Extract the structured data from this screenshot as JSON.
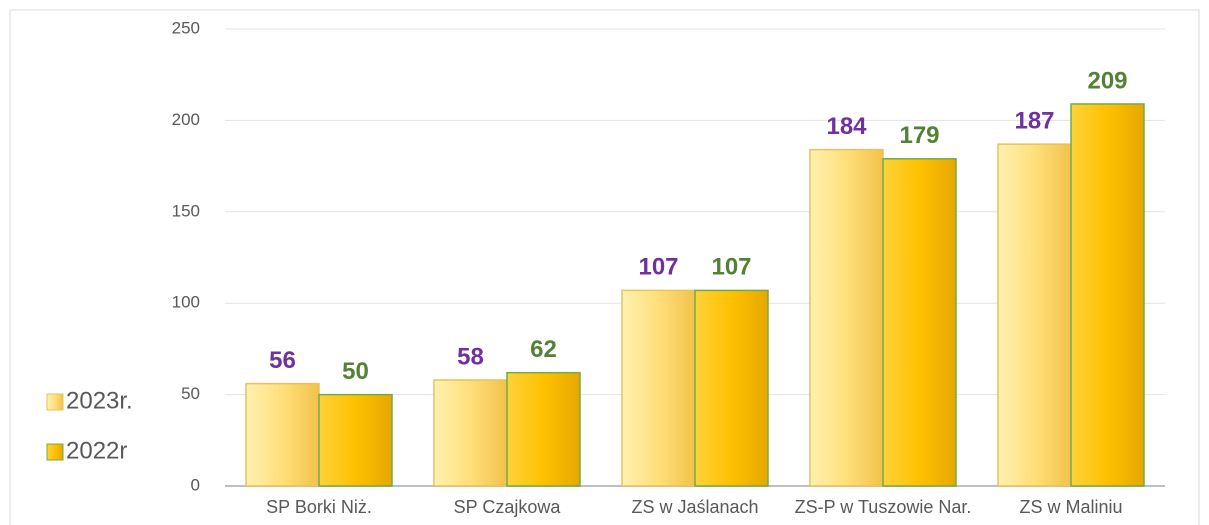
{
  "chart_data": {
    "type": "bar",
    "categories": [
      "SP Borki Niż.",
      "SP Czajkowa",
      "ZS w Jaślanach",
      "ZS-P w Tuszowie Nar.",
      "ZS w Maliniu"
    ],
    "series": [
      {
        "name": "2023r.",
        "color": "#ffe07a",
        "label_color": "#7030a0",
        "values": [
          56,
          58,
          107,
          184,
          187
        ]
      },
      {
        "name": "2022r",
        "color": "#ffc000",
        "label_color": "#538135",
        "values": [
          50,
          62,
          107,
          179,
          209
        ]
      }
    ],
    "ylim": [
      0,
      250
    ],
    "yticks": [
      0,
      50,
      100,
      150,
      200,
      250
    ],
    "grid": true,
    "legend": "left"
  }
}
